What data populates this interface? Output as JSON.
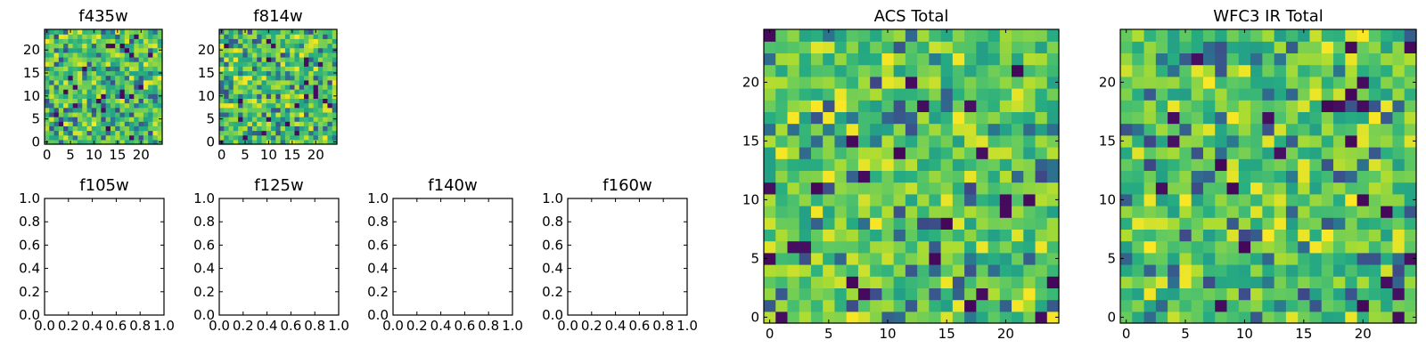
{
  "chart_data": [
    {
      "type": "heatmap",
      "title": "f435w",
      "grid": false,
      "size": 25,
      "seed": 11,
      "xlim": [
        -0.5,
        24.5
      ],
      "ylim": [
        -0.5,
        24.5
      ],
      "x_ticks": [
        0,
        5,
        10,
        15,
        20
      ],
      "y_ticks": [
        0,
        5,
        10,
        15,
        20
      ],
      "colormap": "viridis"
    },
    {
      "type": "heatmap",
      "title": "f814w",
      "grid": false,
      "size": 25,
      "seed": 23,
      "xlim": [
        -0.5,
        24.5
      ],
      "ylim": [
        -0.5,
        24.5
      ],
      "x_ticks": [
        0,
        5,
        10,
        15,
        20
      ],
      "y_ticks": [
        0,
        5,
        10,
        15,
        20
      ],
      "colormap": "viridis"
    },
    {
      "type": "empty",
      "title": "f105w",
      "grid": false,
      "xlim": [
        0,
        1
      ],
      "ylim": [
        0,
        1
      ],
      "x_ticks": [
        "0.0",
        "0.2",
        "0.4",
        "0.6",
        "0.8",
        "1.0"
      ],
      "y_ticks": [
        "0.0",
        "0.2",
        "0.4",
        "0.6",
        "0.8",
        "1.0"
      ]
    },
    {
      "type": "empty",
      "title": "f125w",
      "grid": false,
      "xlim": [
        0,
        1
      ],
      "ylim": [
        0,
        1
      ],
      "x_ticks": [
        "0.0",
        "0.2",
        "0.4",
        "0.6",
        "0.8",
        "1.0"
      ],
      "y_ticks": [
        "0.0",
        "0.2",
        "0.4",
        "0.6",
        "0.8",
        "1.0"
      ]
    },
    {
      "type": "empty",
      "title": "f140w",
      "grid": false,
      "xlim": [
        0,
        1
      ],
      "ylim": [
        0,
        1
      ],
      "x_ticks": [
        "0.0",
        "0.2",
        "0.4",
        "0.6",
        "0.8",
        "1.0"
      ],
      "y_ticks": [
        "0.0",
        "0.2",
        "0.4",
        "0.6",
        "0.8",
        "1.0"
      ]
    },
    {
      "type": "empty",
      "title": "f160w",
      "grid": false,
      "xlim": [
        0,
        1
      ],
      "ylim": [
        0,
        1
      ],
      "x_ticks": [
        "0.0",
        "0.2",
        "0.4",
        "0.6",
        "0.8",
        "1.0"
      ],
      "y_ticks": [
        "0.0",
        "0.2",
        "0.4",
        "0.6",
        "0.8",
        "1.0"
      ]
    },
    {
      "type": "heatmap",
      "title": "ACS Total",
      "grid": false,
      "size": 25,
      "seed": 37,
      "xlim": [
        -0.5,
        24.5
      ],
      "ylim": [
        -0.5,
        24.5
      ],
      "x_ticks": [
        0,
        5,
        10,
        15,
        20
      ],
      "y_ticks": [
        0,
        5,
        10,
        15,
        20
      ],
      "colormap": "viridis"
    },
    {
      "type": "heatmap",
      "title": "WFC3 IR Total",
      "grid": false,
      "size": 25,
      "seed": 59,
      "xlim": [
        -0.5,
        24.5
      ],
      "ylim": [
        -0.5,
        24.5
      ],
      "x_ticks": [
        0,
        5,
        10,
        15,
        20
      ],
      "y_ticks": [
        0,
        5,
        10,
        15,
        20
      ],
      "colormap": "viridis"
    }
  ]
}
